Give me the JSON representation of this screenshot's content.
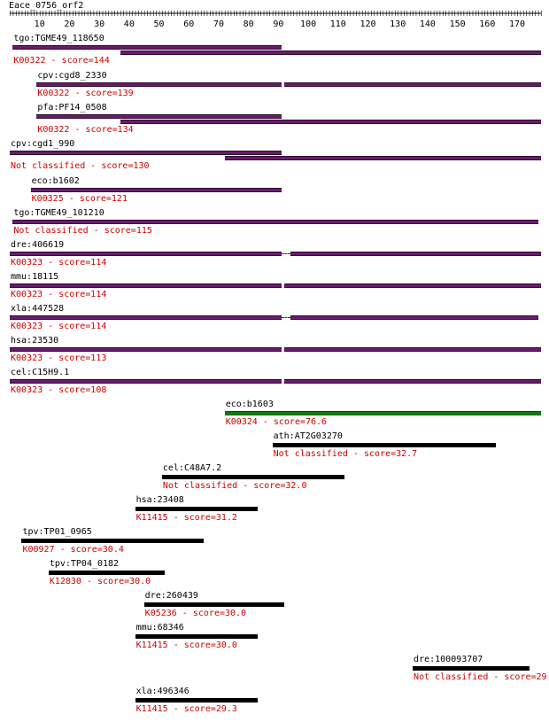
{
  "query": {
    "name": "Eace_0756_orf2",
    "length": 178
  },
  "ruler": {
    "ticks": [
      10,
      20,
      30,
      40,
      50,
      60,
      70,
      80,
      90,
      100,
      110,
      120,
      130,
      140,
      150,
      160,
      170
    ]
  },
  "colors": {
    "purple": "#6a1b6d",
    "green": "#127812",
    "black": "#000000",
    "score_text": "#cc0000"
  },
  "hits": [
    {
      "name": "tgo:TGME49_118650",
      "score_label": "K00322 - score=144",
      "color": "purple",
      "segments": [
        [
          1,
          91
        ],
        [
          37,
          178
        ]
      ]
    },
    {
      "name": "cpv:cgd8_2330",
      "score_label": "K00322 - score=139",
      "color": "purple",
      "segments": [
        [
          9,
          91
        ],
        [
          92,
          178
        ]
      ]
    },
    {
      "name": "pfa:PF14_0508",
      "score_label": "K00322 - score=134",
      "color": "purple",
      "segments": [
        [
          9,
          91
        ],
        [
          37,
          178
        ]
      ]
    },
    {
      "name": "cpv:cgd1_990",
      "score_label": "Not classified - score=130",
      "color": "purple",
      "segments": [
        [
          0,
          91
        ],
        [
          72,
          178
        ]
      ]
    },
    {
      "name": "eco:b1602",
      "score_label": "K00325 - score=121",
      "color": "purple",
      "segments": [
        [
          7,
          91
        ]
      ]
    },
    {
      "name": "tgo:TGME49_101210",
      "score_label": "Not classified - score=115",
      "color": "purple",
      "segments": [
        [
          1,
          177
        ]
      ]
    },
    {
      "name": "dre:406619",
      "score_label": "K00323 - score=114",
      "color": "purple",
      "segments": [
        [
          0,
          91
        ],
        [
          94,
          178
        ]
      ],
      "gaps": [
        [
          91,
          94
        ]
      ]
    },
    {
      "name": "mmu:18115",
      "score_label": "K00323 - score=114",
      "color": "purple",
      "segments": [
        [
          0,
          91
        ],
        [
          92,
          178
        ]
      ]
    },
    {
      "name": "xla:447528",
      "score_label": "K00323 - score=114",
      "color": "purple",
      "segments": [
        [
          0,
          91
        ],
        [
          94,
          177
        ]
      ],
      "gaps": [
        [
          91,
          94
        ]
      ]
    },
    {
      "name": "hsa:23530",
      "score_label": "K00323 - score=113",
      "color": "purple",
      "segments": [
        [
          0,
          91
        ],
        [
          92,
          178
        ]
      ]
    },
    {
      "name": "cel:C15H9.1",
      "score_label": "K00323 - score=108",
      "color": "purple",
      "segments": [
        [
          0,
          91
        ],
        [
          92,
          178
        ]
      ]
    },
    {
      "name": "eco:b1603",
      "score_label": "K00324 - score=76.6",
      "color": "green",
      "segments": [
        [
          72,
          178
        ]
      ]
    },
    {
      "name": "ath:AT2G03270",
      "score_label": "Not classified - score=32.7",
      "color": "black",
      "segments": [
        [
          88,
          163
        ]
      ]
    },
    {
      "name": "cel:C48A7.2",
      "score_label": "Not classified - score=32.0",
      "color": "black",
      "segments": [
        [
          51,
          112
        ]
      ]
    },
    {
      "name": "hsa:23408",
      "score_label": "K11415 - score=31.2",
      "color": "black",
      "segments": [
        [
          42,
          83
        ]
      ]
    },
    {
      "name": "tpv:TP01_0965",
      "score_label": "K00927 - score=30.4",
      "color": "black",
      "segments": [
        [
          4,
          65
        ]
      ]
    },
    {
      "name": "tpv:TP04_0182",
      "score_label": "K12830 - score=30.0",
      "color": "black",
      "segments": [
        [
          13,
          52
        ]
      ]
    },
    {
      "name": "dre:260439",
      "score_label": "K05236 - score=30.0",
      "color": "black",
      "segments": [
        [
          45,
          92
        ]
      ]
    },
    {
      "name": "mmu:68346",
      "score_label": "K11415 - score=30.0",
      "color": "black",
      "segments": [
        [
          42,
          83
        ]
      ]
    },
    {
      "name": "dre:100093707",
      "score_label": "Not classified - score=29",
      "color": "black",
      "segments": [
        [
          135,
          174
        ]
      ]
    },
    {
      "name": "xla:496346",
      "score_label": "K11415 - score=29.3",
      "color": "black",
      "segments": [
        [
          42,
          83
        ]
      ]
    }
  ]
}
